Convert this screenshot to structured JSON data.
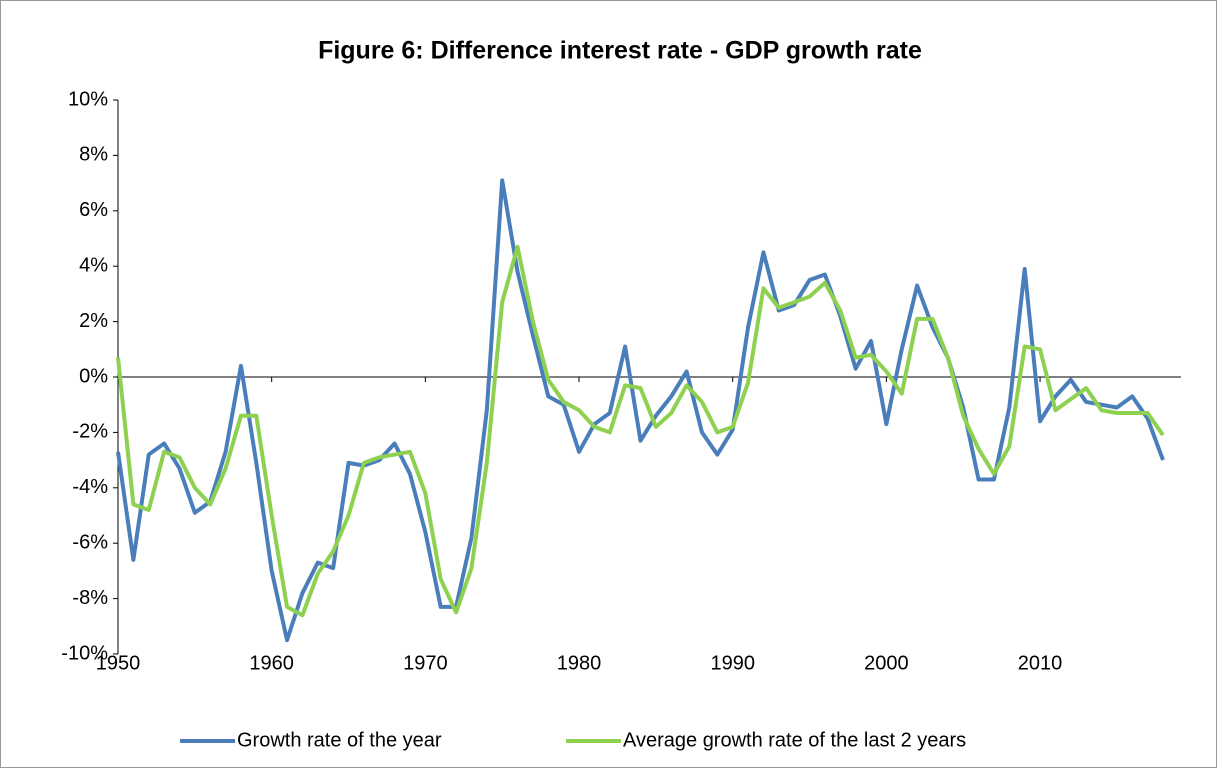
{
  "chart_data": {
    "type": "line",
    "title": "Figure 6: Difference interest rate - GDP growth rate",
    "x": [
      1950,
      1951,
      1952,
      1953,
      1954,
      1955,
      1956,
      1957,
      1958,
      1959,
      1960,
      1961,
      1962,
      1963,
      1964,
      1965,
      1966,
      1967,
      1968,
      1969,
      1970,
      1971,
      1972,
      1973,
      1974,
      1975,
      1976,
      1977,
      1978,
      1979,
      1980,
      1981,
      1982,
      1983,
      1984,
      1985,
      1986,
      1987,
      1988,
      1989,
      1990,
      1991,
      1992,
      1993,
      1994,
      1995,
      1996,
      1997,
      1998,
      1999,
      2000,
      2001,
      2002,
      2003,
      2004,
      2005,
      2006,
      2007,
      2008,
      2009,
      2010,
      2011,
      2012,
      2013,
      2014,
      2015,
      2016,
      2017,
      2018
    ],
    "series": [
      {
        "name": "Growth rate of the year",
        "color": "#4a7ebb",
        "values": [
          -2.7,
          -6.6,
          -2.8,
          -2.4,
          -3.3,
          -4.9,
          -4.5,
          -2.7,
          0.4,
          -3.1,
          -7.0,
          -9.5,
          -7.8,
          -6.7,
          -6.9,
          -3.1,
          -3.2,
          -3.0,
          -2.4,
          -3.5,
          -5.6,
          -8.3,
          -8.3,
          -5.8,
          -1.2,
          7.1,
          3.8,
          1.5,
          -0.7,
          -1.0,
          -2.7,
          -1.7,
          -1.3,
          1.1,
          -2.3,
          -1.4,
          -0.7,
          0.2,
          -2.0,
          -2.8,
          -1.9,
          1.8,
          4.5,
          2.4,
          2.6,
          3.5,
          3.7,
          2.2,
          0.3,
          1.3,
          -1.7,
          1.0,
          3.3,
          1.8,
          0.7,
          -1.1,
          -3.7,
          -3.7,
          -1.1,
          3.9,
          -1.6,
          -0.7,
          -0.1,
          -0.9,
          -1.0,
          -1.1,
          -0.7,
          -1.5,
          -3.0
        ]
      },
      {
        "name": "Average growth rate of the last 2 years",
        "color": "#8ed050",
        "values": [
          0.7,
          -4.6,
          -4.8,
          -2.7,
          -2.9,
          -4.0,
          -4.6,
          -3.3,
          -1.4,
          -1.4,
          -5.0,
          -8.3,
          -8.6,
          -7.1,
          -6.3,
          -5.0,
          -3.1,
          -2.9,
          -2.8,
          -2.7,
          -4.2,
          -7.3,
          -8.5,
          -6.9,
          -3.1,
          2.7,
          4.7,
          2.0,
          -0.1,
          -0.9,
          -1.2,
          -1.8,
          -2.0,
          -0.3,
          -0.4,
          -1.8,
          -1.3,
          -0.3,
          -0.9,
          -2.0,
          -1.8,
          -0.2,
          3.2,
          2.5,
          2.7,
          2.9,
          3.4,
          2.4,
          0.7,
          0.8,
          0.2,
          -0.6,
          2.1,
          2.1,
          0.7,
          -1.4,
          -2.6,
          -3.5,
          -2.5,
          1.1,
          1.0,
          -1.2,
          -0.8,
          -0.4,
          -1.2,
          -1.3,
          -1.3,
          -1.3,
          -2.1
        ]
      }
    ],
    "xlim": [
      1950,
      2018
    ],
    "xticks": [
      1950,
      1960,
      1970,
      1980,
      1990,
      2000,
      2010
    ],
    "ylim": [
      -10,
      10
    ],
    "yticks": [
      {
        "value": -10,
        "label": "-10%"
      },
      {
        "value": -8,
        "label": "-8%"
      },
      {
        "value": -6,
        "label": "-6%"
      },
      {
        "value": -4,
        "label": "-4%"
      },
      {
        "value": -2,
        "label": "-2%"
      },
      {
        "value": 0,
        "label": "0%"
      },
      {
        "value": 2,
        "label": "2%"
      },
      {
        "value": 4,
        "label": "4%"
      },
      {
        "value": 6,
        "label": "6%"
      },
      {
        "value": 8,
        "label": "8%"
      },
      {
        "value": 10,
        "label": "10%"
      }
    ],
    "grid": false,
    "legend": "bottom"
  }
}
